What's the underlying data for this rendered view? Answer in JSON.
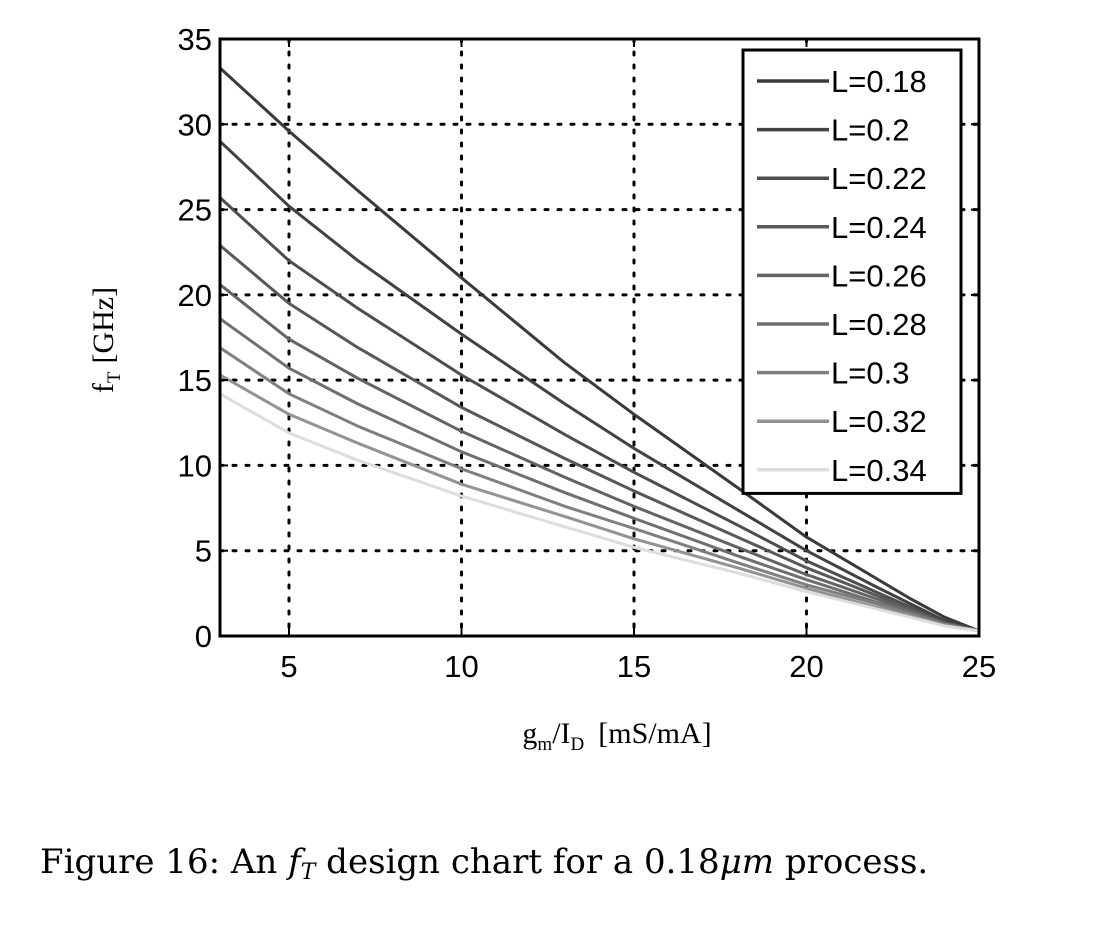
{
  "chart_data": {
    "type": "line",
    "xlabel": {
      "main1": "g",
      "sub1": "m",
      "main2": "/I",
      "sub2": "D",
      "unit": "[mS/mA]"
    },
    "ylabel": {
      "main": "f",
      "sub": "T",
      "unit": "[GHz]"
    },
    "xlim": [
      3,
      25
    ],
    "ylim": [
      0,
      35
    ],
    "xticks": [
      5,
      10,
      15,
      20,
      25
    ],
    "yticks": [
      0,
      5,
      10,
      15,
      20,
      25,
      30,
      35
    ],
    "grid": "dotted",
    "legend_position": "top-right",
    "x": [
      3,
      5,
      7,
      10,
      13,
      15,
      18,
      20,
      22,
      23,
      24,
      25
    ],
    "series": [
      {
        "name": "L=0.18",
        "color": "#3a3a3a",
        "values": [
          33.3,
          29.6,
          26.1,
          21.0,
          16.0,
          13.0,
          8.7,
          5.8,
          3.4,
          2.2,
          1.1,
          0.3
        ]
      },
      {
        "name": "L=0.2",
        "color": "#424242",
        "values": [
          29.0,
          25.2,
          22.0,
          17.7,
          13.6,
          11.0,
          7.4,
          5.0,
          2.9,
          1.9,
          0.9,
          0.3
        ]
      },
      {
        "name": "L=0.22",
        "color": "#4d4d4d",
        "values": [
          25.7,
          22.0,
          19.2,
          15.3,
          11.8,
          9.6,
          6.5,
          4.4,
          2.6,
          1.7,
          0.8,
          0.3
        ]
      },
      {
        "name": "L=0.24",
        "color": "#585858",
        "values": [
          22.9,
          19.5,
          16.9,
          13.4,
          10.4,
          8.5,
          5.8,
          4.0,
          2.4,
          1.6,
          0.8,
          0.3
        ]
      },
      {
        "name": "L=0.26",
        "color": "#636363",
        "values": [
          20.6,
          17.4,
          15.1,
          12.0,
          9.3,
          7.6,
          5.2,
          3.6,
          2.2,
          1.5,
          0.7,
          0.3
        ]
      },
      {
        "name": "L=0.28",
        "color": "#6f6f6f",
        "values": [
          18.6,
          15.7,
          13.6,
          10.8,
          8.4,
          6.9,
          4.7,
          3.3,
          2.0,
          1.4,
          0.7,
          0.3
        ]
      },
      {
        "name": "L=0.3",
        "color": "#7f7f7f",
        "values": [
          16.9,
          14.2,
          12.3,
          9.8,
          7.6,
          6.3,
          4.3,
          3.0,
          1.9,
          1.3,
          0.7,
          0.3
        ]
      },
      {
        "name": "L=0.32",
        "color": "#939393",
        "values": [
          15.3,
          13.0,
          11.3,
          8.9,
          7.0,
          5.7,
          4.0,
          2.8,
          1.7,
          1.2,
          0.6,
          0.3
        ]
      },
      {
        "name": "L=0.34",
        "color": "#dddddd",
        "values": [
          14.2,
          11.9,
          10.3,
          8.2,
          6.4,
          5.2,
          3.7,
          2.6,
          1.6,
          1.1,
          0.6,
          0.3
        ]
      }
    ]
  },
  "caption": {
    "prefix": "Figure 16: An ",
    "math_main": "f",
    "math_sub": "T",
    "middle": " design chart for a 0.18",
    "math_unit": "μm",
    "suffix": " process."
  }
}
